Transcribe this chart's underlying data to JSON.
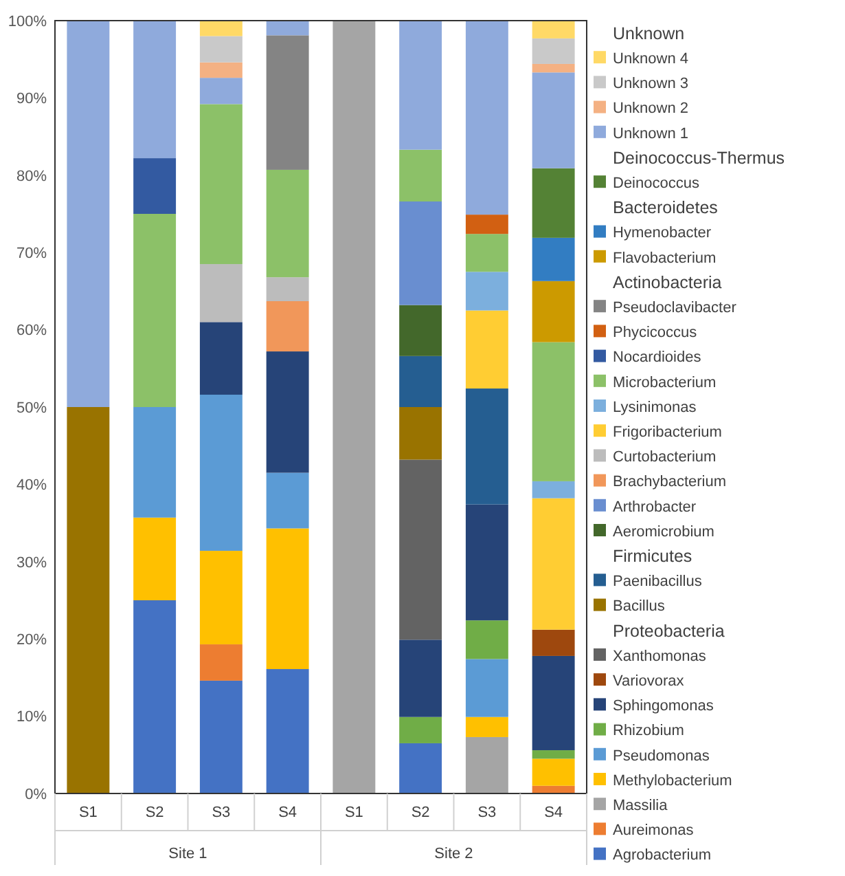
{
  "chart_data": {
    "type": "bar",
    "stacked": true,
    "categories": [
      "S1",
      "S2",
      "S3",
      "S4",
      "S1",
      "S2",
      "S3",
      "S4"
    ],
    "annotations": [
      "Site 1",
      "Site 2"
    ],
    "ylim": [
      0,
      100
    ],
    "yticks": [
      {
        "value": 0,
        "label": "0%"
      },
      {
        "value": 10,
        "label": "10%"
      },
      {
        "value": 20,
        "label": "20%"
      },
      {
        "value": 30,
        "label": "30%"
      },
      {
        "value": 40,
        "label": "40%"
      },
      {
        "value": 50,
        "label": "50%"
      },
      {
        "value": 60,
        "label": "60%"
      },
      {
        "value": 70,
        "label": "70%"
      },
      {
        "value": 80,
        "label": "80%"
      },
      {
        "value": 90,
        "label": "90%"
      },
      {
        "value": 100,
        "label": "100%"
      }
    ],
    "grid": false,
    "legend": "right",
    "series": [
      {
        "name": "Agrobacterium",
        "color": "#4472c4",
        "values": [
          null,
          25,
          14.6,
          16.1,
          null,
          6.5,
          null,
          null
        ]
      },
      {
        "name": "Aureimonas",
        "color": "#ed7d31",
        "values": [
          null,
          null,
          4.7,
          null,
          null,
          null,
          null,
          1.0
        ]
      },
      {
        "name": "Massilia",
        "color": "#a5a5a5",
        "values": [
          null,
          null,
          null,
          null,
          100,
          null,
          7.3,
          null
        ]
      },
      {
        "name": "Methylobacterium",
        "color": "#ffc000",
        "values": [
          null,
          10.7,
          12.1,
          18.2,
          null,
          null,
          2.6,
          3.5
        ]
      },
      {
        "name": "Pseudomonas",
        "color": "#5b9bd5",
        "values": [
          null,
          14.3,
          20.2,
          7.2,
          null,
          null,
          7.5,
          null
        ]
      },
      {
        "name": "Rhizobium",
        "color": "#70ad47",
        "values": [
          null,
          null,
          null,
          null,
          null,
          3.4,
          5.0,
          1.1
        ]
      },
      {
        "name": "Sphingomonas",
        "color": "#264478",
        "values": [
          null,
          null,
          9.4,
          15.7,
          null,
          10.0,
          15.0,
          12.2
        ]
      },
      {
        "name": "Variovorax",
        "color": "#9e480e",
        "values": [
          null,
          null,
          null,
          null,
          null,
          null,
          null,
          3.4
        ]
      },
      {
        "name": "Xanthomonas",
        "color": "#636363",
        "values": [
          null,
          null,
          null,
          null,
          null,
          23.3,
          null,
          null
        ]
      },
      {
        "name": "Proteobacteria",
        "values": [
          null,
          null,
          null,
          null,
          null,
          null,
          null,
          null
        ]
      },
      {
        "name": "Bacillus",
        "color": "#997300",
        "values": [
          50,
          null,
          null,
          null,
          null,
          6.8,
          null,
          null
        ]
      },
      {
        "name": "Paenibacillus",
        "color": "#255e91",
        "values": [
          null,
          null,
          null,
          null,
          null,
          6.6,
          15.0,
          null
        ]
      },
      {
        "name": "Firmicutes",
        "values": [
          null,
          null,
          null,
          null,
          null,
          null,
          null,
          null
        ]
      },
      {
        "name": "Aeromicrobium",
        "color": "#43682b",
        "values": [
          null,
          null,
          null,
          null,
          null,
          6.6,
          null,
          null
        ]
      },
      {
        "name": "Arthrobacter",
        "color": "#698ed0",
        "values": [
          null,
          null,
          null,
          null,
          null,
          13.4,
          null,
          null
        ]
      },
      {
        "name": "Brachybacterium",
        "color": "#f1975a",
        "values": [
          null,
          null,
          null,
          6.5,
          null,
          null,
          null,
          null
        ]
      },
      {
        "name": "Curtobacterium",
        "color": "#bcbcbc",
        "values": [
          null,
          null,
          7.5,
          3.1,
          null,
          null,
          null,
          null
        ]
      },
      {
        "name": "Frigoribacterium",
        "color": "#ffcd33",
        "values": [
          null,
          null,
          null,
          null,
          null,
          null,
          10.1,
          17.0
        ]
      },
      {
        "name": "Lysinimonas",
        "color": "#7cafdd",
        "values": [
          null,
          null,
          null,
          null,
          null,
          null,
          5.0,
          2.2
        ]
      },
      {
        "name": "Microbacterium",
        "color": "#8cc168",
        "values": [
          null,
          25,
          20.7,
          13.9,
          null,
          6.7,
          4.9,
          18.0
        ]
      },
      {
        "name": "Nocardioides",
        "color": "#335aa1",
        "values": [
          null,
          7.2,
          null,
          null,
          null,
          null,
          null,
          null
        ]
      },
      {
        "name": "Phycicoccus",
        "color": "#d26012",
        "values": [
          null,
          null,
          null,
          null,
          null,
          null,
          2.5,
          null
        ]
      },
      {
        "name": "Pseudoclavibacter",
        "color": "#848484",
        "values": [
          null,
          null,
          null,
          17.4,
          null,
          null,
          null,
          null
        ]
      },
      {
        "name": "Actinobacteria",
        "values": [
          null,
          null,
          null,
          null,
          null,
          null,
          null,
          null
        ]
      },
      {
        "name": "Flavobacterium",
        "color": "#cc9a00",
        "values": [
          null,
          null,
          null,
          null,
          null,
          null,
          null,
          7.9
        ]
      },
      {
        "name": "Hymenobacter",
        "color": "#327dc2",
        "values": [
          null,
          null,
          null,
          null,
          null,
          null,
          null,
          5.6
        ]
      },
      {
        "name": "Bacteroidetes",
        "values": [
          null,
          null,
          null,
          null,
          null,
          null,
          null,
          null
        ]
      },
      {
        "name": "Deinococcus",
        "color": "#548235",
        "values": [
          null,
          null,
          null,
          null,
          null,
          null,
          null,
          9.0
        ]
      },
      {
        "name": "Deinococcus-Thermus",
        "values": [
          null,
          null,
          null,
          null,
          null,
          null,
          null,
          null
        ]
      },
      {
        "name": "Unknown 1",
        "color": "#8faadc",
        "values": [
          50,
          17.8,
          3.4,
          1.9,
          null,
          16.7,
          25.1,
          12.4
        ]
      },
      {
        "name": "Unknown 2",
        "color": "#f4b183",
        "values": [
          null,
          null,
          2.0,
          null,
          null,
          null,
          null,
          1.1
        ]
      },
      {
        "name": "Unknown 3",
        "color": "#c9c9c9",
        "values": [
          null,
          null,
          3.4,
          null,
          null,
          null,
          null,
          3.3
        ]
      },
      {
        "name": "Unknown 4",
        "color": "#ffd966",
        "values": [
          null,
          null,
          2.0,
          null,
          null,
          null,
          null,
          2.3
        ]
      },
      {
        "name": "Unknown",
        "values": [
          null,
          null,
          null,
          null,
          null,
          null,
          null,
          null
        ]
      }
    ]
  }
}
